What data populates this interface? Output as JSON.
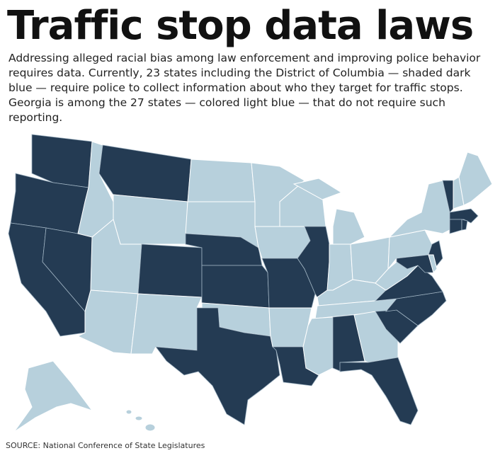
{
  "header": {
    "title": "Traffic stop data laws",
    "description": "Addressing alleged racial bias among law enforcement and improving police behavior requires data. Currently, 23 states including the District of Columbia — shaded dark blue — require police to collect information about who they target for traffic stops. Georgia is among the 27 states — colored light blue — that do not require such reporting."
  },
  "footer": {
    "source": "SOURCE: National Conference of State Legislatures"
  }
}
